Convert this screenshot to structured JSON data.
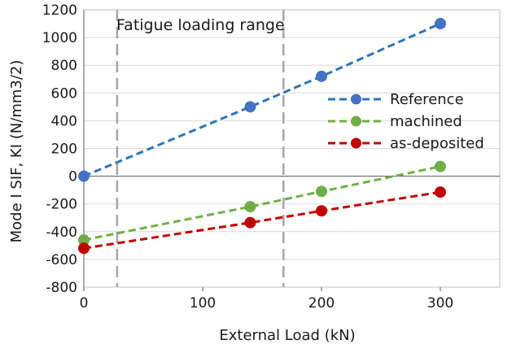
{
  "chart_data": {
    "type": "scatter",
    "title": "",
    "xlabel": "External Load (kN)",
    "ylabel": "Mode I SIF, KI (N/mm3/2)",
    "xlim": [
      0,
      350
    ],
    "ylim": [
      -800,
      1200
    ],
    "xticks": [
      0,
      100,
      200,
      300
    ],
    "yticks": [
      -800,
      -600,
      -400,
      -200,
      0,
      200,
      400,
      600,
      800,
      1000,
      1200
    ],
    "grid": "horizontal",
    "legend_position": "right",
    "series": [
      {
        "name": "Reference",
        "color": "#4472C4",
        "line_color": "#2E75B6",
        "line_style": "dashed",
        "x": [
          0,
          140,
          200,
          300
        ],
        "y": [
          0,
          500,
          720,
          1100
        ]
      },
      {
        "name": "machined",
        "color": "#70AD47",
        "line_color": "#70AD47",
        "line_style": "dashed",
        "x": [
          0,
          140,
          200,
          300
        ],
        "y": [
          -460,
          -220,
          -110,
          70
        ]
      },
      {
        "name": "as-deposited",
        "color": "#C00000",
        "line_color": "#C00000",
        "line_style": "dashed",
        "x": [
          0,
          140,
          200,
          300
        ],
        "y": [
          -520,
          -335,
          -250,
          -115
        ]
      }
    ],
    "vertical_lines": [
      {
        "x": 28,
        "color": "#A6A6A6",
        "style": "dashed"
      },
      {
        "x": 168,
        "color": "#A6A6A6",
        "style": "dashed"
      }
    ],
    "annotations": [
      {
        "text": "Fatigue loading range",
        "x": 30,
        "y": 1120
      }
    ]
  }
}
